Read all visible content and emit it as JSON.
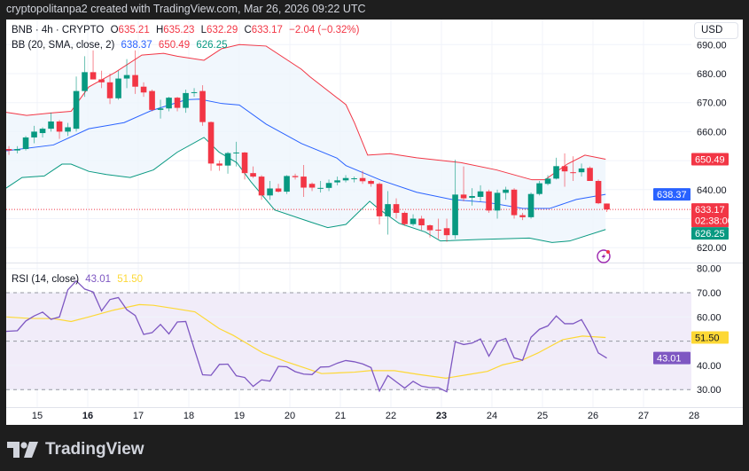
{
  "header": {
    "attribution": "cryptopolitanpa2 created with TradingView.com, Mar 26, 2026 09:22 UTC"
  },
  "legend": {
    "symbol": "BNB · 4h · CRYPTO",
    "open_label": "O",
    "open": "635.21",
    "high_label": "H",
    "high": "635.23",
    "low_label": "L",
    "low": "632.29",
    "close_label": "C",
    "close": "633.17",
    "change": "−2.04 (−0.32%)",
    "bb_title": "BB (20, SMA, close, 2)",
    "bb_basis": "638.37",
    "bb_upper": "650.49",
    "bb_lower": "626.25",
    "rsi_title": "RSI (14, close)",
    "rsi_value": "43.01",
    "rsi_ma": "51.50"
  },
  "price_axis": {
    "currency": "USD",
    "ticks": [
      "690.00",
      "680.00",
      "670.00",
      "660.00",
      "640.00",
      "620.00"
    ],
    "tick_values": [
      690,
      680,
      670,
      660,
      640,
      620
    ],
    "labels": {
      "upper": "650.49",
      "basis": "638.37",
      "last": "633.17",
      "countdown": "02:38:00",
      "lower": "626.25"
    }
  },
  "rsi_axis": {
    "ticks": [
      "80.00",
      "70.00",
      "60.00",
      "40.00",
      "30.00"
    ],
    "tick_values": [
      80,
      70,
      60,
      40,
      30
    ],
    "labels": {
      "ma": "51.50",
      "rsi": "43.01"
    }
  },
  "time_axis": {
    "labels": [
      "15",
      "16",
      "17",
      "18",
      "19",
      "20",
      "21",
      "22",
      "23",
      "24",
      "25",
      "26",
      "27",
      "28"
    ],
    "bold": [
      "16",
      "23"
    ]
  },
  "colors": {
    "up": "#089981",
    "down": "#f23645",
    "basis": "#2962ff",
    "upper": "#f23645",
    "lower": "#089981",
    "band_fill": "#eef5fd",
    "rsi": "#7e57c2",
    "rsi_ma": "#fdd835",
    "rsi_fill": "#f1ecf9"
  },
  "logo": {
    "text": "TradingView"
  },
  "chart_data": {
    "type": "candlestick",
    "symbol": "BNB",
    "interval": "4h",
    "first_candle": "2026-03-14 08:00",
    "price_range": [
      615,
      692
    ],
    "ohlc": [
      [
        652.6,
        654.5,
        651.5,
        654
      ],
      [
        654,
        655,
        652,
        653.5
      ],
      [
        653.5,
        655,
        652.5,
        654
      ],
      [
        654,
        658.5,
        653.5,
        658
      ],
      [
        658,
        662,
        656,
        660
      ],
      [
        659.5,
        661.5,
        658,
        661
      ],
      [
        661,
        666.6,
        660,
        663.5
      ],
      [
        663.5,
        664,
        657.5,
        660
      ],
      [
        660,
        663,
        658.5,
        661.5
      ],
      [
        661,
        679,
        660,
        674
      ],
      [
        674,
        686,
        672,
        680.5
      ],
      [
        680.5,
        688,
        678,
        678
      ],
      [
        678,
        681,
        675,
        677
      ],
      [
        677,
        680,
        669.5,
        671.5
      ],
      [
        671.5,
        681,
        671,
        678.3
      ],
      [
        678.3,
        685,
        675,
        679.5
      ],
      [
        679.5,
        688,
        673,
        675.5
      ],
      [
        675.5,
        677,
        672,
        673.5
      ],
      [
        674,
        674.5,
        667,
        667.5
      ],
      [
        667.5,
        671,
        664.5,
        668
      ],
      [
        668,
        672,
        667,
        671.7
      ],
      [
        671.7,
        672,
        667,
        668.2
      ],
      [
        668.2,
        674.5,
        666.5,
        673.3
      ],
      [
        673.3,
        675,
        672,
        673.6
      ],
      [
        674,
        676,
        662,
        663.3
      ],
      [
        663.3,
        663.5,
        646.5,
        649
      ],
      [
        649,
        650,
        646.5,
        648.3
      ],
      [
        648.3,
        653,
        645.5,
        652.6
      ],
      [
        652.6,
        656.5,
        648,
        652.8
      ],
      [
        652.8,
        653,
        643.5,
        645.7
      ],
      [
        645.7,
        648,
        644,
        644.5
      ],
      [
        644.5,
        645,
        636.5,
        638
      ],
      [
        638,
        643,
        636.5,
        640.4
      ],
      [
        640.4,
        642,
        639,
        639.3
      ],
      [
        639.3,
        645,
        638.5,
        644.7
      ],
      [
        644.7,
        645.5,
        643.5,
        644.3
      ],
      [
        644.5,
        648.5,
        637.5,
        640.7
      ],
      [
        642,
        642.5,
        639.5,
        640.7
      ],
      [
        640.6,
        643,
        639,
        640.6
      ],
      [
        640.6,
        643.5,
        639.5,
        642.3
      ],
      [
        642.5,
        644.5,
        641.5,
        643.2
      ],
      [
        643.2,
        645,
        642.5,
        644
      ],
      [
        643.7,
        644.5,
        642.5,
        643.9
      ],
      [
        644,
        646.5,
        642,
        642.9
      ],
      [
        643,
        643.5,
        641,
        642
      ],
      [
        642,
        642.5,
        628,
        630.8
      ],
      [
        630.8,
        639.5,
        624.5,
        635
      ],
      [
        635,
        637,
        630,
        632
      ],
      [
        632,
        632.5,
        627.5,
        628.1
      ],
      [
        628.1,
        631.5,
        627.5,
        630
      ],
      [
        630,
        631,
        626,
        627.7
      ],
      [
        627.7,
        628,
        623.5,
        626
      ],
      [
        626.2,
        630,
        623,
        626
      ],
      [
        626.7,
        630,
        622,
        624.3
      ],
      [
        624.3,
        650.3,
        623,
        638.3
      ],
      [
        638.3,
        648,
        636,
        637
      ],
      [
        637.2,
        640.5,
        634.5,
        637.8
      ],
      [
        637.5,
        641.5,
        636,
        639.4
      ],
      [
        639.4,
        640,
        632,
        632.8
      ],
      [
        632.8,
        640,
        630,
        638.9
      ],
      [
        638.9,
        641,
        636.5,
        640
      ],
      [
        640,
        640.5,
        630,
        631.2
      ],
      [
        631.2,
        632,
        629.5,
        630.5
      ],
      [
        630.5,
        639,
        630,
        638.5
      ],
      [
        638.5,
        643,
        638,
        642.2
      ],
      [
        642,
        645,
        641.5,
        643.8
      ],
      [
        643.8,
        651,
        643.5,
        648.1
      ],
      [
        648.1,
        652.5,
        641,
        646.3
      ],
      [
        646,
        651.5,
        643,
        645.8
      ],
      [
        646,
        649,
        644.5,
        647.3
      ],
      [
        647.5,
        648,
        643,
        643
      ],
      [
        643,
        643.5,
        635,
        635.3
      ],
      [
        635.21,
        635.23,
        632.29,
        633.17
      ]
    ],
    "bb_upper": [
      [
        14.26,
        667
      ],
      [
        14.79,
        665.6
      ],
      [
        15.32,
        666.5
      ],
      [
        15.67,
        667
      ],
      [
        16.02,
        675.4
      ],
      [
        16.54,
        680.4
      ],
      [
        17.07,
        686.4
      ],
      [
        17.5,
        687
      ],
      [
        17.77,
        686
      ],
      [
        18.3,
        684.6
      ],
      [
        18.65,
        688.6
      ],
      [
        19.0,
        690
      ],
      [
        19.53,
        689.5
      ],
      [
        20.23,
        681.5
      ],
      [
        20.4,
        678.9
      ],
      [
        21.11,
        669.3
      ],
      [
        21.28,
        663
      ],
      [
        21.54,
        651.9
      ],
      [
        21.98,
        652.4
      ],
      [
        22.51,
        651
      ],
      [
        23.39,
        649.3
      ],
      [
        24.09,
        646.8
      ],
      [
        24.79,
        643.4
      ],
      [
        25.05,
        643.4
      ],
      [
        25.49,
        648.8
      ],
      [
        25.84,
        651.9
      ],
      [
        26.25,
        650.49
      ]
    ],
    "bb_basis": [
      [
        14.26,
        653
      ],
      [
        14.39,
        653.4
      ],
      [
        15.32,
        655.4
      ],
      [
        16.02,
        661
      ],
      [
        16.72,
        663.1
      ],
      [
        17.25,
        667.2
      ],
      [
        17.95,
        671
      ],
      [
        18.21,
        671.2
      ],
      [
        18.65,
        669.7
      ],
      [
        19.0,
        669.2
      ],
      [
        19.53,
        662.6
      ],
      [
        20.23,
        655.9
      ],
      [
        20.93,
        650.9
      ],
      [
        21.11,
        648.3
      ],
      [
        21.81,
        643.2
      ],
      [
        22.51,
        639.1
      ],
      [
        23.21,
        636.6
      ],
      [
        23.91,
        635.6
      ],
      [
        24.61,
        633.5
      ],
      [
        25.14,
        633.5
      ],
      [
        25.67,
        636.6
      ],
      [
        26.25,
        638.37
      ]
    ],
    "bb_lower": [
      [
        14.26,
        639.1
      ],
      [
        14.7,
        644.2
      ],
      [
        15.14,
        644.7
      ],
      [
        15.49,
        648.8
      ],
      [
        15.67,
        648.8
      ],
      [
        16.02,
        646.3
      ],
      [
        16.37,
        645.2
      ],
      [
        16.84,
        644.2
      ],
      [
        17.3,
        646.8
      ],
      [
        17.77,
        652.9
      ],
      [
        18.3,
        658
      ],
      [
        18.6,
        652.9
      ],
      [
        18.95,
        649.3
      ],
      [
        19.23,
        642.7
      ],
      [
        19.7,
        633
      ],
      [
        20.4,
        628.9
      ],
      [
        20.75,
        626.9
      ],
      [
        21.11,
        628
      ],
      [
        21.58,
        636
      ],
      [
        21.75,
        633.5
      ],
      [
        22.16,
        628.4
      ],
      [
        22.68,
        625.4
      ],
      [
        22.98,
        622.3
      ],
      [
        23.74,
        622.8
      ],
      [
        24.74,
        623.3
      ],
      [
        25.19,
        621.8
      ],
      [
        25.54,
        622.3
      ],
      [
        26.25,
        626.25
      ]
    ],
    "rsi": [
      53.9,
      54.1,
      54.3,
      58.3,
      60.4,
      62,
      59,
      60,
      71.2,
      74.9,
      71.5,
      70.3,
      62.5,
      67.2,
      68,
      63,
      60.6,
      52.8,
      53.5,
      56.9,
      53,
      57.9,
      58.1,
      46.9,
      36.1,
      35.9,
      40.4,
      40.5,
      35.7,
      35,
      31.3,
      34,
      33.5,
      39.6,
      39.4,
      37.4,
      36.4,
      36.2,
      39.3,
      39.4,
      40.9,
      42,
      41.5,
      40.6,
      39.1,
      29.4,
      35.8,
      33.2,
      30.6,
      33.4,
      31.4,
      30.8,
      30.8,
      29.1,
      49.7,
      48.6,
      49.2,
      50.9,
      43.8,
      49.9,
      51.1,
      43.1,
      42.1,
      51.6,
      54.9,
      56.3,
      60.4,
      57.2,
      57.2,
      58.9,
      52.8,
      45.1,
      43.01
    ],
    "rsi_ma": [
      [
        14.39,
        60
      ],
      [
        14.84,
        59.4
      ],
      [
        15.32,
        59.3
      ],
      [
        15.67,
        58.1
      ],
      [
        16.02,
        60
      ],
      [
        16.49,
        62.7
      ],
      [
        17.02,
        65.1
      ],
      [
        17.3,
        64.8
      ],
      [
        17.77,
        63.3
      ],
      [
        18.12,
        62.1
      ],
      [
        18.6,
        55.2
      ],
      [
        18.88,
        52.4
      ],
      [
        19.47,
        45.1
      ],
      [
        19.93,
        41.5
      ],
      [
        20.63,
        36.6
      ],
      [
        21.28,
        37.2
      ],
      [
        21.58,
        37.8
      ],
      [
        22.07,
        37.8
      ],
      [
        22.56,
        36.2
      ],
      [
        23.09,
        34.7
      ],
      [
        23.56,
        36.3
      ],
      [
        23.91,
        37.5
      ],
      [
        24.21,
        40.2
      ],
      [
        24.56,
        41.8
      ],
      [
        24.91,
        45.1
      ],
      [
        25.4,
        50.6
      ],
      [
        25.79,
        52.1
      ],
      [
        26.25,
        51.5
      ]
    ],
    "rsi_range": [
      25,
      82
    ],
    "rsi_levels": [
      70,
      50,
      30
    ],
    "last_price": 633.17,
    "grid": true
  }
}
